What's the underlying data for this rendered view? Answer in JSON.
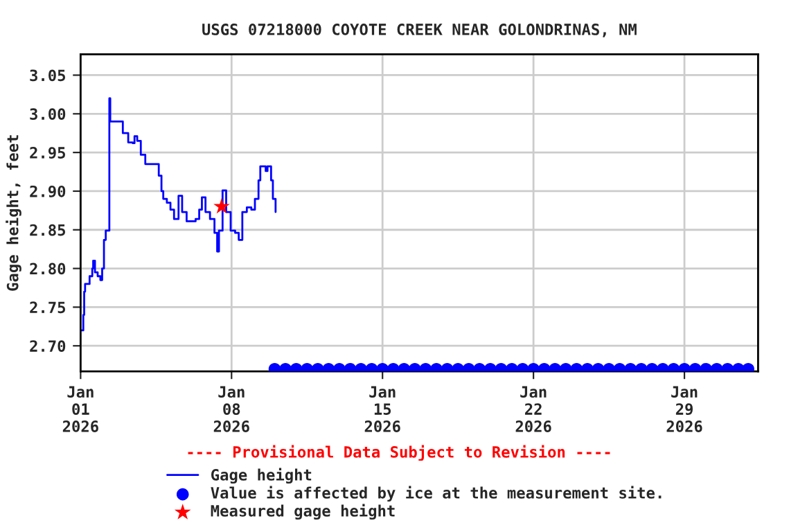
{
  "chart_data": {
    "type": "step",
    "title": "USGS 07218000 COYOTE CREEK NEAR GOLONDRINAS, NM",
    "ylabel": "Gage height, feet",
    "xlim": [
      "2026-01-01T00:00",
      "2026-02-01T10:00"
    ],
    "ylim": [
      2.667,
      3.077
    ],
    "xticks": [
      {
        "value": "2026-01-01",
        "label": "Jan\n01\n2026"
      },
      {
        "value": "2026-01-08",
        "label": "Jan\n08\n2026"
      },
      {
        "value": "2026-01-15",
        "label": "Jan\n15\n2026"
      },
      {
        "value": "2026-01-22",
        "label": "Jan\n22\n2026"
      },
      {
        "value": "2026-01-29",
        "label": "Jan\n29\n2026"
      }
    ],
    "yticks": [
      {
        "value": 2.7,
        "label": "2.70"
      },
      {
        "value": 2.75,
        "label": "2.75"
      },
      {
        "value": 2.8,
        "label": "2.80"
      },
      {
        "value": 2.85,
        "label": "2.85"
      },
      {
        "value": 2.9,
        "label": "2.90"
      },
      {
        "value": 2.95,
        "label": "2.95"
      },
      {
        "value": 3.0,
        "label": "3.00"
      },
      {
        "value": 3.05,
        "label": "3.05"
      }
    ],
    "grid": true,
    "legend": "bottom",
    "annotations": [
      "---- Provisional Data Subject to Revision ----"
    ],
    "series": [
      {
        "name": "Gage height",
        "color": "#0000ff",
        "marker": "none",
        "line_style": "solid",
        "x": [
          "2026-01-01T00:00",
          "2026-01-01T03:00",
          "2026-01-01T04:00",
          "2026-01-01T05:00",
          "2026-01-01T10:00",
          "2026-01-01T13:00",
          "2026-01-01T14:00",
          "2026-01-01T16:00",
          "2026-01-01T19:00",
          "2026-01-01T22:00",
          "2026-01-02T00:00",
          "2026-01-02T02:00",
          "2026-01-02T04:00",
          "2026-01-02T07:00",
          "2026-01-02T08:00",
          "2026-01-02T09:00",
          "2026-01-02T21:00",
          "2026-01-02T23:00",
          "2026-01-03T05:00",
          "2026-01-03T10:00",
          "2026-01-03T12:00",
          "2026-01-03T15:00",
          "2026-01-03T19:00",
          "2026-01-04T00:00",
          "2026-01-04T13:00",
          "2026-01-04T15:00",
          "2026-01-04T18:00",
          "2026-01-04T20:00",
          "2026-01-05T00:00",
          "2026-01-05T04:00",
          "2026-01-05T08:00",
          "2026-01-05T13:00",
          "2026-01-05T17:00",
          "2026-01-05T22:00",
          "2026-01-06T08:00",
          "2026-01-06T12:00",
          "2026-01-06T15:00",
          "2026-01-06T19:00",
          "2026-01-07T00:00",
          "2026-01-07T05:00",
          "2026-01-07T08:00",
          "2026-01-07T10:00",
          "2026-01-07T14:00",
          "2026-01-07T18:00",
          "2026-01-07T23:00",
          "2026-01-08T04:00",
          "2026-01-08T08:00",
          "2026-01-08T12:00",
          "2026-01-08T17:00",
          "2026-01-08T22:00",
          "2026-01-09T02:00",
          "2026-01-09T06:00",
          "2026-01-09T08:00",
          "2026-01-09T14:00",
          "2026-01-09T16:00",
          "2026-01-09T20:00",
          "2026-01-09T22:00",
          "2026-01-10T01:00"
        ],
        "values": [
          2.72,
          2.74,
          2.77,
          2.78,
          2.79,
          2.8,
          2.81,
          2.795,
          2.79,
          2.785,
          2.8,
          2.837,
          2.849,
          2.849,
          3.02,
          2.99,
          2.99,
          2.975,
          2.963,
          2.962,
          2.971,
          2.965,
          2.947,
          2.935,
          2.935,
          2.92,
          2.9,
          2.89,
          2.885,
          2.876,
          2.864,
          2.894,
          2.873,
          2.861,
          2.864,
          2.876,
          2.892,
          2.873,
          2.864,
          2.846,
          2.822,
          2.849,
          2.901,
          2.873,
          2.849,
          2.846,
          2.837,
          2.873,
          2.879,
          2.876,
          2.89,
          2.914,
          2.932,
          2.926,
          2.932,
          2.914,
          2.89,
          2.873
        ]
      },
      {
        "name": "Value is affected by ice at the measurement site.",
        "type": "scatter",
        "color": "#0000ff",
        "marker": "circle",
        "x": [
          "2026-01-10T00:00",
          "2026-01-10T12:00",
          "2026-01-11T00:00",
          "2026-01-11T12:00",
          "2026-01-12T00:00",
          "2026-01-12T12:00",
          "2026-01-13T00:00",
          "2026-01-13T12:00",
          "2026-01-14T00:00",
          "2026-01-14T12:00",
          "2026-01-15T00:00",
          "2026-01-15T12:00",
          "2026-01-16T00:00",
          "2026-01-16T12:00",
          "2026-01-17T00:00",
          "2026-01-17T12:00",
          "2026-01-18T00:00",
          "2026-01-18T12:00",
          "2026-01-19T00:00",
          "2026-01-19T12:00",
          "2026-01-20T00:00",
          "2026-01-20T12:00",
          "2026-01-21T00:00",
          "2026-01-21T12:00",
          "2026-01-22T00:00",
          "2026-01-22T12:00",
          "2026-01-23T00:00",
          "2026-01-23T12:00",
          "2026-01-24T00:00",
          "2026-01-24T12:00",
          "2026-01-25T00:00",
          "2026-01-25T12:00",
          "2026-01-26T00:00",
          "2026-01-26T12:00",
          "2026-01-27T00:00",
          "2026-01-27T12:00",
          "2026-01-28T00:00",
          "2026-01-28T12:00",
          "2026-01-29T00:00",
          "2026-01-29T12:00",
          "2026-01-30T00:00",
          "2026-01-30T12:00",
          "2026-01-31T00:00",
          "2026-01-31T12:00",
          "2026-01-31T23:00"
        ],
        "values": [
          2.67,
          2.67,
          2.67,
          2.67,
          2.67,
          2.67,
          2.67,
          2.67,
          2.67,
          2.67,
          2.67,
          2.67,
          2.67,
          2.67,
          2.67,
          2.67,
          2.67,
          2.67,
          2.67,
          2.67,
          2.67,
          2.67,
          2.67,
          2.67,
          2.67,
          2.67,
          2.67,
          2.67,
          2.67,
          2.67,
          2.67,
          2.67,
          2.67,
          2.67,
          2.67,
          2.67,
          2.67,
          2.67,
          2.67,
          2.67,
          2.67,
          2.67,
          2.67,
          2.67,
          2.67
        ]
      },
      {
        "name": "Measured gage height",
        "type": "scatter",
        "color": "#ff0000",
        "marker": "star",
        "x": [
          "2026-01-07T13:00"
        ],
        "values": [
          2.88
        ]
      }
    ]
  }
}
